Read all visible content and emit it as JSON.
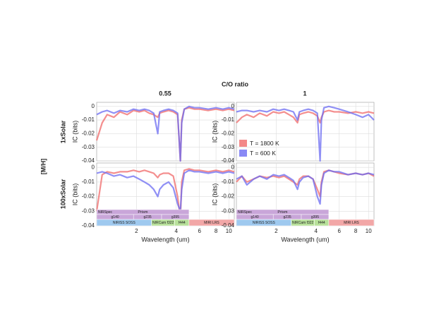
{
  "figure": {
    "title": "C/O ratio",
    "columns": [
      "0.55",
      "1"
    ],
    "row_title": "[M/H]",
    "rows": [
      "1xSolar",
      "100xSolar"
    ],
    "bands": [
      [
        {
          "label": "NIRSpec",
          "range": [
            1,
            5
          ],
          "color": "#c9a6d9"
        }
      ],
      [
        {
          "label": "g140",
          "range": [
            1,
            1.9
          ],
          "color": "#c9a6d9"
        },
        {
          "label": "g235",
          "range": [
            1.9,
            3.1
          ],
          "color": "#c9a6d9"
        },
        {
          "label": "g395",
          "range": [
            3.1,
            5
          ],
          "color": "#c9a6d9"
        }
      ],
      [
        {
          "label": "NIRISS SOSS",
          "range": [
            1,
            2.6
          ],
          "color": "#9fc9ef"
        },
        {
          "label": "NIRCam f322",
          "range": [
            2.6,
            3.9
          ],
          "color": "#b7e09a"
        },
        {
          "label": "f444",
          "range": [
            3.9,
            5
          ],
          "color": "#b7e09a"
        },
        {
          "label": "MIRI LRS",
          "range": [
            5,
            11
          ],
          "color": "#f2a7a7"
        }
      ]
    ],
    "band_title": "Prism"
  },
  "chart_data": [
    {
      "type": "line",
      "log_x": true,
      "grid": true,
      "ylabel": "IC (bits)",
      "xlim": [
        1,
        11
      ],
      "ylim": [
        -0.04,
        0.003
      ],
      "xticks": [
        2,
        4,
        6,
        8,
        10
      ],
      "show_xtick_labels": false,
      "yticks": [
        0,
        -0.01,
        -0.02,
        -0.03,
        -0.04
      ],
      "x": [
        1.0,
        1.1,
        1.2,
        1.35,
        1.5,
        1.7,
        1.9,
        2.1,
        2.3,
        2.5,
        2.7,
        2.9,
        3.0,
        3.2,
        3.5,
        3.8,
        4.1,
        4.3,
        4.4,
        4.6,
        5.0,
        5.5,
        6,
        7,
        8,
        9,
        10,
        11
      ],
      "series": [
        {
          "color": "#f06a6a",
          "values": [
            -0.025,
            -0.012,
            -0.006,
            -0.008,
            -0.004,
            -0.006,
            -0.003,
            -0.004,
            -0.003,
            -0.005,
            -0.006,
            -0.008,
            -0.005,
            -0.004,
            -0.003,
            -0.004,
            -0.006,
            -0.04,
            -0.01,
            -0.002,
            -0.001,
            -0.002,
            -0.002,
            -0.003,
            -0.002,
            -0.003,
            -0.002,
            -0.003
          ]
        },
        {
          "color": "#6b6bf2",
          "values": [
            -0.006,
            -0.004,
            -0.003,
            -0.005,
            -0.003,
            -0.004,
            -0.002,
            -0.003,
            -0.002,
            -0.003,
            -0.005,
            -0.02,
            -0.004,
            -0.003,
            -0.002,
            -0.003,
            -0.005,
            -0.04,
            -0.012,
            -0.002,
            0,
            -0.001,
            -0.001,
            -0.002,
            -0.001,
            -0.002,
            -0.001,
            -0.002
          ]
        }
      ]
    },
    {
      "type": "line",
      "log_x": true,
      "grid": true,
      "ylabel": "IC (bits)",
      "xlim": [
        1,
        11
      ],
      "ylim": [
        -0.04,
        0.003
      ],
      "xticks": [
        2,
        4,
        6,
        8,
        10
      ],
      "show_xtick_labels": false,
      "yticks": [
        0,
        -0.01,
        -0.02,
        -0.03,
        -0.04
      ],
      "legend": "lower left",
      "x": [
        1.0,
        1.1,
        1.2,
        1.35,
        1.5,
        1.7,
        1.9,
        2.1,
        2.3,
        2.5,
        2.7,
        2.9,
        3.0,
        3.2,
        3.5,
        3.8,
        4.1,
        4.3,
        4.4,
        4.6,
        5.0,
        5.5,
        6,
        7,
        8,
        9,
        10,
        11
      ],
      "series": [
        {
          "name": "T = 1800 K",
          "color": "#f06a6a",
          "values": [
            -0.012,
            -0.008,
            -0.006,
            -0.008,
            -0.005,
            -0.007,
            -0.004,
            -0.005,
            -0.004,
            -0.006,
            -0.008,
            -0.012,
            -0.006,
            -0.005,
            -0.004,
            -0.005,
            -0.007,
            -0.012,
            -0.008,
            -0.004,
            -0.003,
            -0.004,
            -0.004,
            -0.005,
            -0.004,
            -0.005,
            -0.004,
            -0.005
          ]
        },
        {
          "name": "T = 600 K",
          "color": "#6b6bf2",
          "values": [
            -0.004,
            -0.003,
            -0.003,
            -0.004,
            -0.003,
            -0.004,
            -0.002,
            -0.003,
            -0.002,
            -0.003,
            -0.004,
            -0.01,
            -0.004,
            -0.003,
            -0.002,
            -0.003,
            -0.005,
            -0.04,
            -0.01,
            -0.001,
            0,
            -0.001,
            -0.002,
            -0.004,
            -0.006,
            -0.008,
            -0.006,
            -0.01
          ]
        }
      ]
    },
    {
      "type": "line",
      "log_x": true,
      "grid": true,
      "ylabel": "IC (bits)",
      "xlabel": "Wavelength (um)",
      "xlim": [
        1,
        11
      ],
      "ylim": [
        -0.04,
        0.003
      ],
      "xticks": [
        2,
        4,
        6,
        8,
        10
      ],
      "show_xtick_labels": true,
      "yticks": [
        0,
        -0.01,
        -0.02,
        -0.03,
        -0.04
      ],
      "show_bands": true,
      "x": [
        1.0,
        1.1,
        1.2,
        1.35,
        1.5,
        1.7,
        1.9,
        2.1,
        2.3,
        2.5,
        2.7,
        2.9,
        3.0,
        3.2,
        3.5,
        3.8,
        4.1,
        4.3,
        4.4,
        4.6,
        5.0,
        5.5,
        6,
        7,
        8,
        9,
        10,
        11
      ],
      "series": [
        {
          "color": "#f06a6a",
          "values": [
            -0.03,
            -0.005,
            -0.003,
            -0.004,
            -0.003,
            -0.003,
            -0.002,
            -0.003,
            -0.002,
            -0.003,
            -0.004,
            -0.007,
            -0.005,
            -0.004,
            -0.004,
            -0.006,
            -0.02,
            -0.035,
            -0.01,
            -0.002,
            -0.001,
            -0.002,
            -0.002,
            -0.003,
            -0.002,
            -0.003,
            -0.002,
            -0.003
          ]
        },
        {
          "color": "#6b6bf2",
          "values": [
            -0.004,
            -0.003,
            -0.004,
            -0.006,
            -0.005,
            -0.007,
            -0.006,
            -0.008,
            -0.01,
            -0.012,
            -0.015,
            -0.02,
            -0.015,
            -0.012,
            -0.01,
            -0.014,
            -0.025,
            -0.03,
            -0.015,
            -0.004,
            -0.002,
            -0.003,
            -0.003,
            -0.004,
            -0.003,
            -0.004,
            -0.003,
            -0.004
          ]
        }
      ]
    },
    {
      "type": "line",
      "log_x": true,
      "grid": true,
      "ylabel": "IC (bits)",
      "xlabel": "Wavelength (um)",
      "xlim": [
        1,
        11
      ],
      "ylim": [
        -0.04,
        0.003
      ],
      "xticks": [
        2,
        4,
        6,
        8,
        10
      ],
      "show_xtick_labels": true,
      "yticks": [
        0,
        -0.01,
        -0.02,
        -0.03,
        -0.04
      ],
      "show_bands": true,
      "x": [
        1.0,
        1.1,
        1.2,
        1.35,
        1.5,
        1.7,
        1.9,
        2.1,
        2.3,
        2.5,
        2.7,
        2.9,
        3.0,
        3.2,
        3.5,
        3.8,
        4.1,
        4.3,
        4.4,
        4.6,
        5.0,
        5.5,
        6,
        7,
        8,
        9,
        10,
        11
      ],
      "series": [
        {
          "color": "#f06a6a",
          "values": [
            -0.01,
            -0.006,
            -0.01,
            -0.008,
            -0.006,
            -0.007,
            -0.006,
            -0.007,
            -0.006,
            -0.008,
            -0.01,
            -0.012,
            -0.008,
            -0.006,
            -0.006,
            -0.008,
            -0.015,
            -0.02,
            -0.01,
            -0.003,
            -0.002,
            -0.003,
            -0.004,
            -0.005,
            -0.004,
            -0.005,
            -0.004,
            -0.006
          ]
        },
        {
          "color": "#6b6bf2",
          "values": [
            -0.008,
            -0.006,
            -0.012,
            -0.008,
            -0.006,
            -0.008,
            -0.005,
            -0.006,
            -0.005,
            -0.007,
            -0.009,
            -0.015,
            -0.01,
            -0.007,
            -0.006,
            -0.008,
            -0.02,
            -0.025,
            -0.012,
            -0.004,
            -0.002,
            -0.003,
            -0.003,
            -0.005,
            -0.004,
            -0.005,
            -0.004,
            -0.005
          ]
        }
      ]
    }
  ]
}
